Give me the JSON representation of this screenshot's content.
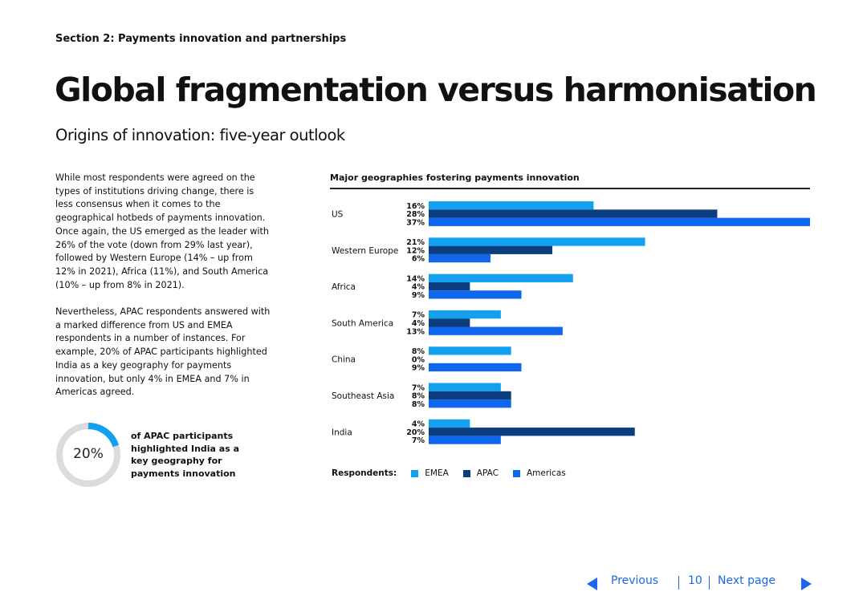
{
  "section_label": "Section 2: Payments innovation and partnerships",
  "title": "Global fragmentation versus harmonisation",
  "subtitle": "Origins of innovation: five-year outlook",
  "paragraphs": {
    "p1": "While most respondents were agreed on the types of institutions driving change, there is less consensus when it comes to the geographical hotbeds of payments innovation. Once again, the US emerged as the leader with 26% of the vote (down from 29% last year), followed by Western Europe (14% – up from 12% in 2021), Africa (11%), and South America (10% – up from 8% in 2021).",
    "p2": "Nevertheless, APAC respondents answered with a marked difference from US and EMEA respondents in a number of instances. For example, 20% of APAC participants highlighted India as a key geography for payments innovation, but only 4% in EMEA and 7% in Americas agreed."
  },
  "stat": {
    "value_text": "20%",
    "value": 20,
    "caption": "of APAC participants highlighted India as a key geography for payments innovation",
    "color_fill": "#14a0f0",
    "color_track": "#dcdcde"
  },
  "chart_data": {
    "type": "bar",
    "orientation": "horizontal",
    "title": "Major geographies fostering payments innovation",
    "categories": [
      "US",
      "Western Europe",
      "Africa",
      "South America",
      "China",
      "Southeast Asia",
      "India"
    ],
    "series": [
      {
        "name": "EMEA",
        "color": "#14a0f0",
        "values": [
          16,
          21,
          14,
          7,
          8,
          7,
          4
        ]
      },
      {
        "name": "APAC",
        "color": "#0c3d7e",
        "values": [
          28,
          12,
          4,
          4,
          0,
          8,
          20
        ]
      },
      {
        "name": "Americas",
        "color": "#1067ed",
        "values": [
          37,
          6,
          9,
          13,
          9,
          8,
          7
        ]
      }
    ],
    "value_suffix": "%",
    "xlim": [
      0,
      37
    ],
    "legend_title": "Respondents:",
    "legend_position": "bottom-left"
  },
  "footer": {
    "previous_label": "Previous",
    "page_number": "10",
    "next_label": "Next page"
  }
}
